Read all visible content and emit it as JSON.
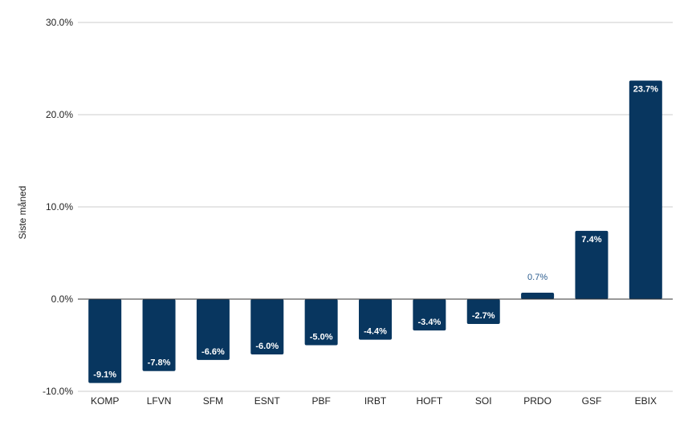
{
  "chart_data": {
    "type": "bar",
    "ylabel": "Siste måned",
    "categories": [
      "KOMP",
      "LFVN",
      "SFM",
      "ESNT",
      "PBF",
      "IRBT",
      "HOFT",
      "SOI",
      "PRDO",
      "GSF",
      "EBIX"
    ],
    "values": [
      -9.1,
      -7.8,
      -6.6,
      -6.0,
      -5.0,
      -4.4,
      -3.4,
      -2.7,
      0.7,
      7.4,
      23.7
    ],
    "value_labels": [
      "-9.1%",
      "-7.8%",
      "-6.6%",
      "-6.0%",
      "-5.0%",
      "-4.4%",
      "-3.4%",
      "-2.7%",
      "0.7%",
      "7.4%",
      "23.7%"
    ],
    "ylim": [
      -10,
      30
    ],
    "yticks": [
      -10,
      0,
      10,
      20,
      30
    ],
    "ytick_labels": [
      "-10.0%",
      "0.0%",
      "10.0%",
      "20.0%",
      "30.0%"
    ],
    "grid": true,
    "bar_color": "#08365f"
  }
}
